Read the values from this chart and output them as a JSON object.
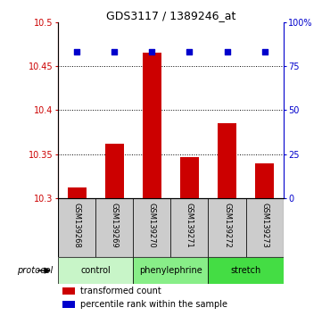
{
  "title": "GDS3117 / 1389246_at",
  "samples": [
    "GSM139268",
    "GSM139269",
    "GSM139270",
    "GSM139271",
    "GSM139272",
    "GSM139273"
  ],
  "red_values": [
    10.312,
    10.362,
    10.465,
    10.347,
    10.385,
    10.34
  ],
  "blue_values": [
    83,
    83,
    83,
    83,
    83,
    83
  ],
  "ylim_left": [
    10.3,
    10.5
  ],
  "ylim_right": [
    0,
    100
  ],
  "yticks_left": [
    10.3,
    10.35,
    10.4,
    10.45,
    10.5
  ],
  "yticks_left_labels": [
    "10.3",
    "10.35",
    "10.4",
    "10.45",
    "10.5"
  ],
  "yticks_right": [
    0,
    25,
    50,
    75,
    100
  ],
  "yticks_right_labels": [
    "0",
    "25",
    "50",
    "75",
    "100%"
  ],
  "grid_lines": [
    10.35,
    10.4,
    10.45
  ],
  "protocol_groups": [
    {
      "label": "control",
      "indices": [
        0,
        1
      ],
      "color": "#c8f5c8"
    },
    {
      "label": "phenylephrine",
      "indices": [
        2,
        3
      ],
      "color": "#88ee88"
    },
    {
      "label": "stretch",
      "indices": [
        4,
        5
      ],
      "color": "#44dd44"
    }
  ],
  "protocol_label": "protocol",
  "bar_color": "#cc0000",
  "blue_color": "#0000cc",
  "sample_box_color": "#cccccc",
  "base_value": 10.3,
  "bar_width": 0.5,
  "title_fontsize": 9,
  "tick_fontsize": 7,
  "sample_fontsize": 6,
  "protocol_fontsize": 7,
  "legend_fontsize": 7
}
